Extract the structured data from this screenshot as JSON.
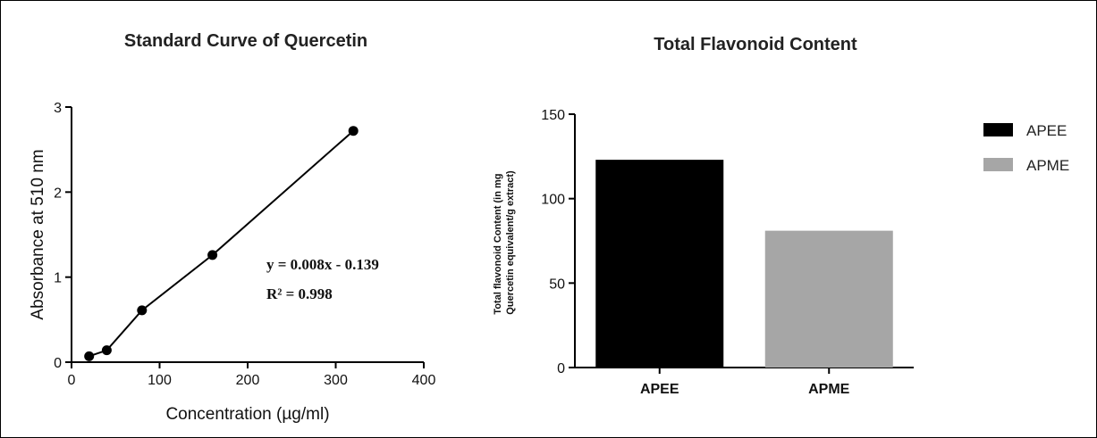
{
  "chart_data": [
    {
      "type": "line",
      "title": "Standard Curve of Quercetin",
      "xlabel": "Concentration (µg/ml)",
      "ylabel": "Absorbance at 510 nm",
      "xlim": [
        0,
        400
      ],
      "ylim": [
        0,
        3
      ],
      "x_ticks": [
        "0",
        "100",
        "200",
        "300",
        "400"
      ],
      "y_ticks": [
        "0",
        "1",
        "2",
        "3"
      ],
      "grid": false,
      "series": [
        {
          "x": [
            20,
            40,
            80,
            160,
            320
          ],
          "y": [
            0.07,
            0.14,
            0.61,
            1.26,
            2.72
          ],
          "color": "#000000"
        }
      ],
      "annotations": [
        "y = 0.008x - 0.139",
        "R² = 0.998"
      ]
    },
    {
      "type": "bar",
      "title": "Total Flavonoid Content",
      "xlabel": "",
      "ylabel": "Total flavonoid Content (in mg Quercetin equivalent/g extract)",
      "ylabel_lines": [
        "Total flavonoid Content (in mg",
        "Quercetin equivalent/g extract)"
      ],
      "ylim": [
        0,
        150
      ],
      "y_ticks": [
        "0",
        "50",
        "100",
        "150"
      ],
      "categories": [
        "APEE",
        "APME"
      ],
      "values": [
        123,
        81
      ],
      "colors": [
        "#000000",
        "#a6a6a6"
      ],
      "legend": {
        "position": "right",
        "entries": [
          {
            "label": "APEE",
            "color": "#000000"
          },
          {
            "label": "APME",
            "color": "#a6a6a6"
          }
        ]
      }
    }
  ]
}
